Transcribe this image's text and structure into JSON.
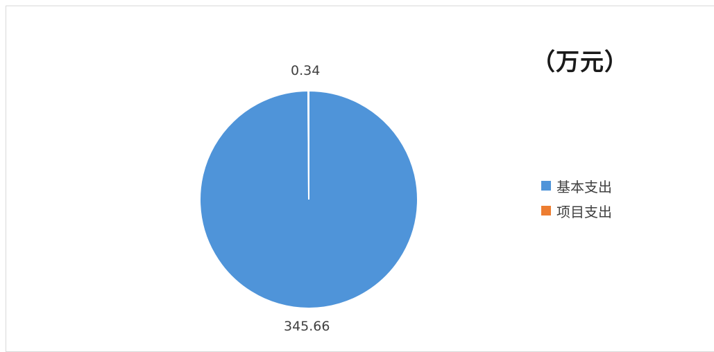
{
  "chart_data": {
    "type": "pie",
    "title": "（万元）",
    "categories": [
      "基本支出",
      "项目支出"
    ],
    "values": [
      345.66,
      0.34
    ],
    "value_labels": [
      "345.66",
      "0.34"
    ],
    "colors": [
      "#4f94d9",
      "#ed7d31"
    ],
    "legend_position": "right",
    "start_angle": "top",
    "direction": "clockwise"
  }
}
